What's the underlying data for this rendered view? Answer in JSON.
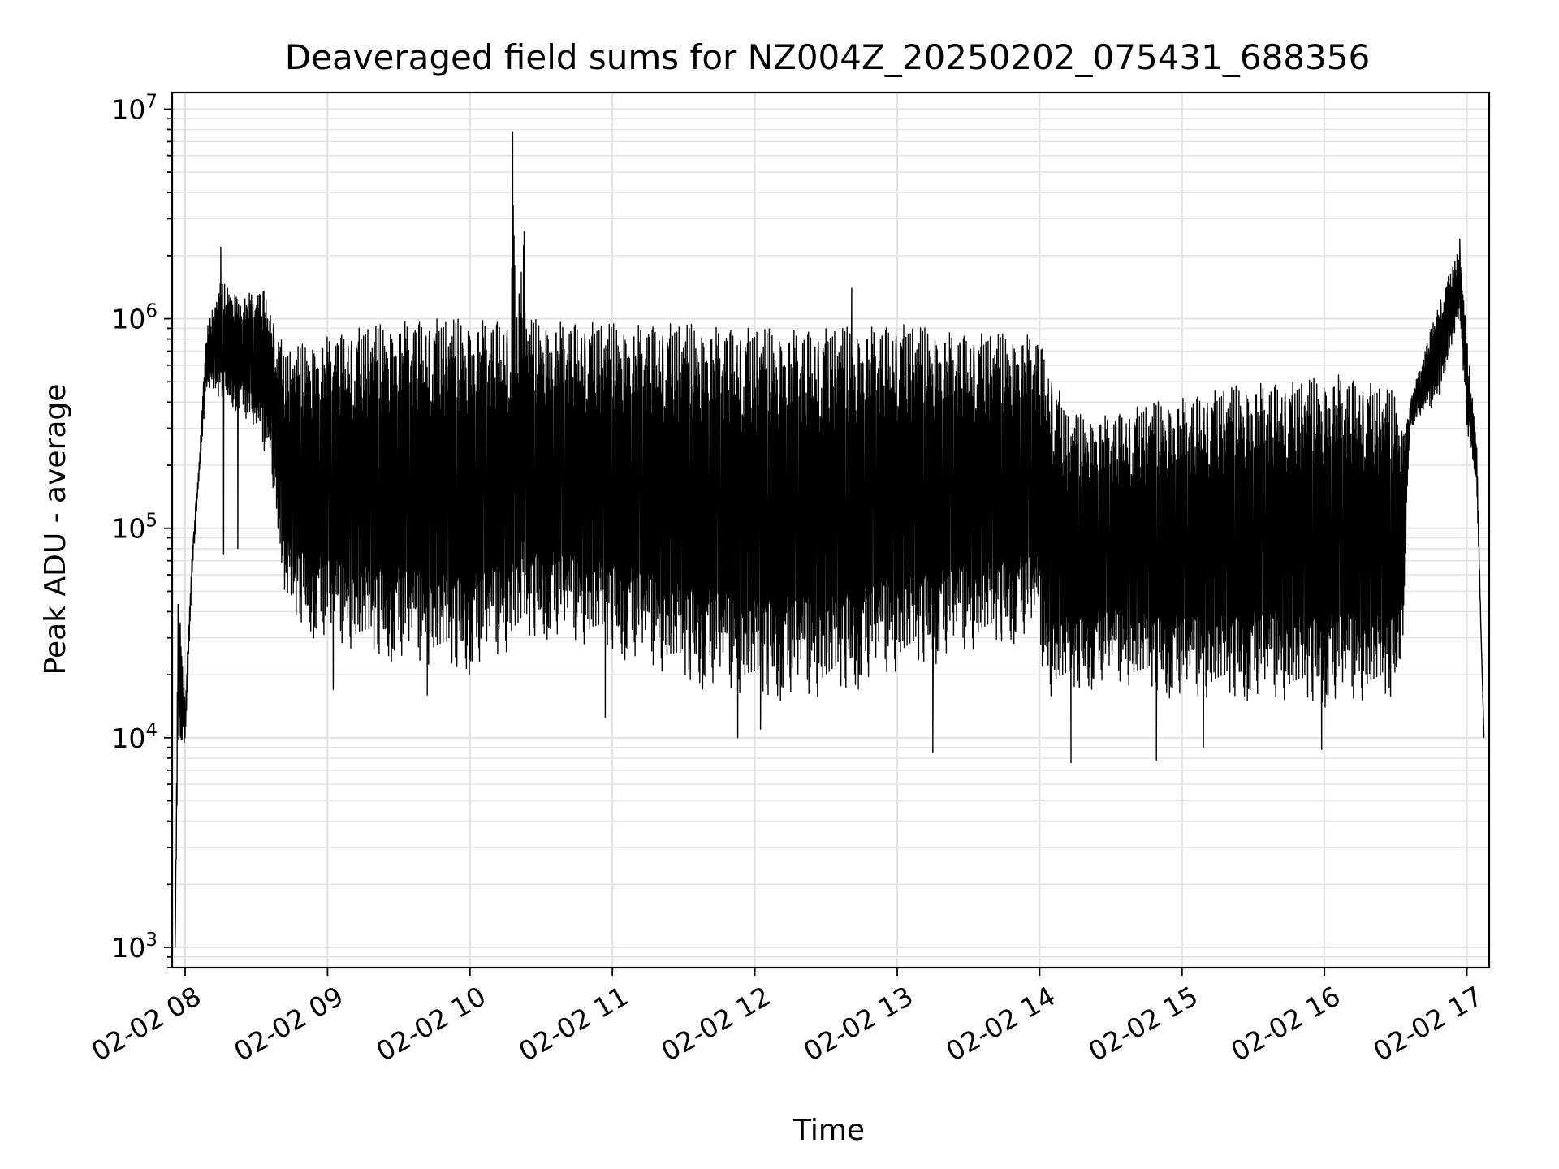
{
  "chart_data": {
    "type": "line",
    "title": "Deaveraged field sums for NZ004Z_20250202_075431_688356",
    "xlabel": "Time",
    "ylabel": "Peak ADU - average",
    "yscale": "log",
    "ylim": [
      800,
      12000000
    ],
    "xlim": [
      "2025-02-02 07:54",
      "2025-02-02 17:10"
    ],
    "grid": true,
    "line_color": "#000000",
    "x_tick_labels": [
      "02-02 08",
      "02-02 09",
      "02-02 10",
      "02-02 11",
      "02-02 12",
      "02-02 13",
      "02-02 14",
      "02-02 15",
      "02-02 16",
      "02-02 17"
    ],
    "x_tick_hours": [
      8,
      9,
      10,
      11,
      12,
      13,
      14,
      15,
      16,
      17
    ],
    "y_ticks": [
      {
        "base": "10",
        "exp": "3",
        "value": 1000
      },
      {
        "base": "10",
        "exp": "4",
        "value": 10000
      },
      {
        "base": "10",
        "exp": "5",
        "value": 100000
      },
      {
        "base": "10",
        "exp": "6",
        "value": 1000000
      },
      {
        "base": "10",
        "exp": "7",
        "value": 10000000
      }
    ],
    "series": [
      {
        "envelope_upper": [
          [
            7.93,
            1000
          ],
          [
            7.95,
            55000
          ],
          [
            8.0,
            15000
          ],
          [
            8.05,
            80000
          ],
          [
            8.1,
            220000
          ],
          [
            8.15,
            900000
          ],
          [
            8.25,
            1500000
          ],
          [
            8.4,
            1300000
          ],
          [
            8.55,
            1400000
          ],
          [
            8.65,
            900000
          ],
          [
            8.7,
            700000
          ],
          [
            8.9,
            800000
          ],
          [
            9.2,
            900000
          ],
          [
            9.6,
            1000000
          ],
          [
            10.0,
            1000000
          ],
          [
            10.29,
            1000000
          ],
          [
            10.3,
            7800000
          ],
          [
            10.32,
            1000000
          ],
          [
            10.38,
            2500000
          ],
          [
            10.4,
            1000000
          ],
          [
            11.0,
            950000
          ],
          [
            11.5,
            950000
          ],
          [
            12.0,
            900000
          ],
          [
            12.5,
            900000
          ],
          [
            13.0,
            950000
          ],
          [
            13.5,
            850000
          ],
          [
            13.98,
            850000
          ],
          [
            14.05,
            650000
          ],
          [
            14.2,
            350000
          ],
          [
            14.5,
            350000
          ],
          [
            14.8,
            400000
          ],
          [
            15.2,
            450000
          ],
          [
            15.5,
            500000
          ],
          [
            15.8,
            500000
          ],
          [
            16.1,
            550000
          ],
          [
            16.5,
            450000
          ],
          [
            16.55,
            300000
          ],
          [
            16.6,
            400000
          ],
          [
            16.8,
            1200000
          ],
          [
            16.95,
            2200000
          ],
          [
            17.0,
            800000
          ],
          [
            17.07,
            250000
          ],
          [
            17.1,
            30000
          ],
          [
            17.12,
            10000
          ]
        ],
        "envelope_lower": [
          [
            7.93,
            1000
          ],
          [
            7.95,
            10000
          ],
          [
            8.0,
            9000
          ],
          [
            8.05,
            60000
          ],
          [
            8.1,
            180000
          ],
          [
            8.15,
            450000
          ],
          [
            8.4,
            350000
          ],
          [
            8.6,
            200000
          ],
          [
            8.7,
            40000
          ],
          [
            8.9,
            30000
          ],
          [
            9.2,
            25000
          ],
          [
            9.6,
            22000
          ],
          [
            10.0,
            20000
          ],
          [
            10.5,
            30000
          ],
          [
            11.0,
            25000
          ],
          [
            11.5,
            18000
          ],
          [
            12.0,
            15000
          ],
          [
            12.5,
            15000
          ],
          [
            13.0,
            20000
          ],
          [
            13.5,
            25000
          ],
          [
            13.98,
            30000
          ],
          [
            14.05,
            15000
          ],
          [
            14.5,
            18000
          ],
          [
            15.0,
            15000
          ],
          [
            15.5,
            15000
          ],
          [
            16.0,
            14000
          ],
          [
            16.5,
            15000
          ],
          [
            16.55,
            30000
          ],
          [
            16.6,
            300000
          ],
          [
            16.8,
            400000
          ],
          [
            16.95,
            1000000
          ],
          [
            17.0,
            300000
          ],
          [
            17.07,
            150000
          ],
          [
            17.1,
            30000
          ],
          [
            17.12,
            10000
          ]
        ],
        "spikes": [
          [
            10.3,
            7800000
          ],
          [
            10.38,
            2600000
          ],
          [
            8.25,
            2200000
          ],
          [
            16.95,
            2400000
          ],
          [
            12.68,
            1400000
          ],
          [
            8.37,
            80000
          ],
          [
            8.27,
            75000
          ],
          [
            9.04,
            17000
          ],
          [
            9.7,
            16000
          ],
          [
            10.95,
            12500
          ],
          [
            11.88,
            10000
          ],
          [
            12.04,
            11000
          ],
          [
            13.25,
            8500
          ],
          [
            14.22,
            7600
          ],
          [
            14.82,
            7800
          ],
          [
            15.15,
            9000
          ],
          [
            15.98,
            8800
          ]
        ]
      }
    ]
  }
}
